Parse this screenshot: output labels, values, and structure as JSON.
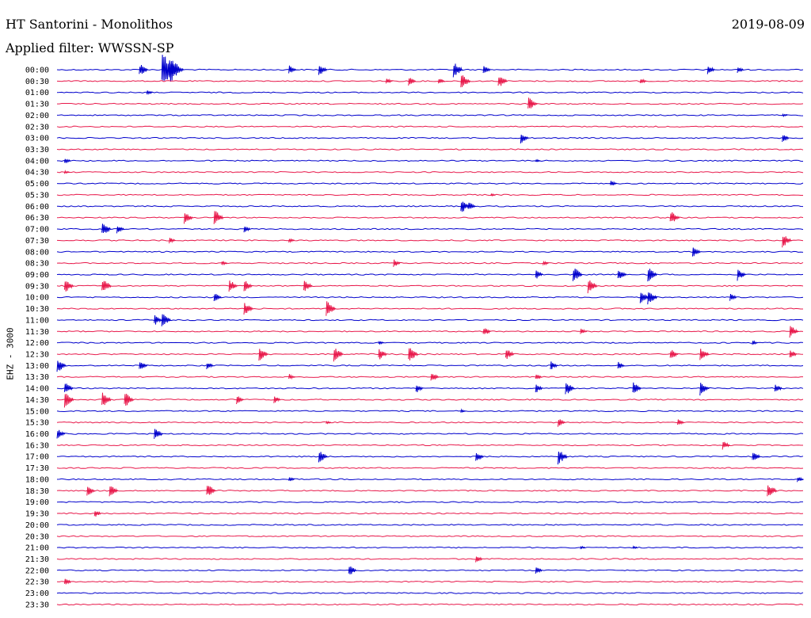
{
  "header": {
    "station": "HT Santorini - Monolithos",
    "date": "2019-08-09",
    "filter_label": "Applied filter: WWSSN-SP"
  },
  "channel": "EHZ - 3000",
  "colors": {
    "trace_a": "#0000cc",
    "trace_b": "#e8194b",
    "background": "#ffffff",
    "text": "#000000"
  },
  "rows": [
    {
      "label": "00:00",
      "events": [
        [
          0.11,
          8
        ],
        [
          0.14,
          22
        ],
        [
          0.15,
          18
        ],
        [
          0.31,
          6
        ],
        [
          0.35,
          8
        ],
        [
          0.53,
          10
        ],
        [
          0.57,
          6
        ],
        [
          0.87,
          6
        ],
        [
          0.91,
          4
        ]
      ]
    },
    {
      "label": "00:30",
      "events": [
        [
          0.44,
          4
        ],
        [
          0.47,
          6
        ],
        [
          0.51,
          5
        ],
        [
          0.54,
          10
        ],
        [
          0.59,
          9
        ],
        [
          0.78,
          4
        ]
      ]
    },
    {
      "label": "01:00",
      "events": [
        [
          0.12,
          3
        ]
      ]
    },
    {
      "label": "01:30",
      "events": [
        [
          0.63,
          9
        ]
      ]
    },
    {
      "label": "02:00",
      "events": [
        [
          0.97,
          2
        ]
      ]
    },
    {
      "label": "02:30",
      "events": []
    },
    {
      "label": "03:00",
      "events": [
        [
          0.62,
          7
        ],
        [
          0.97,
          5
        ]
      ]
    },
    {
      "label": "03:30",
      "events": []
    },
    {
      "label": "04:00",
      "events": [
        [
          0.01,
          4
        ],
        [
          0.64,
          2
        ]
      ]
    },
    {
      "label": "04:30",
      "events": [
        [
          0.01,
          2
        ]
      ]
    },
    {
      "label": "05:00",
      "events": [
        [
          0.74,
          4
        ]
      ]
    },
    {
      "label": "05:30",
      "events": [
        [
          0.58,
          2
        ]
      ]
    },
    {
      "label": "06:00",
      "events": [
        [
          0.54,
          9
        ],
        [
          0.55,
          6
        ]
      ]
    },
    {
      "label": "06:30",
      "events": [
        [
          0.17,
          8
        ],
        [
          0.21,
          10
        ],
        [
          0.82,
          9
        ]
      ]
    },
    {
      "label": "07:00",
      "events": [
        [
          0.06,
          9
        ],
        [
          0.08,
          6
        ],
        [
          0.25,
          5
        ]
      ]
    },
    {
      "label": "07:30",
      "events": [
        [
          0.15,
          4
        ],
        [
          0.31,
          3
        ],
        [
          0.97,
          9
        ]
      ]
    },
    {
      "label": "08:00",
      "events": [
        [
          0.85,
          7
        ]
      ]
    },
    {
      "label": "08:30",
      "events": [
        [
          0.22,
          3
        ],
        [
          0.45,
          5
        ],
        [
          0.65,
          3
        ]
      ]
    },
    {
      "label": "09:00",
      "events": [
        [
          0.64,
          6
        ],
        [
          0.69,
          10
        ],
        [
          0.75,
          8
        ],
        [
          0.79,
          10
        ],
        [
          0.91,
          8
        ]
      ]
    },
    {
      "label": "09:30",
      "events": [
        [
          0.01,
          9
        ],
        [
          0.06,
          10
        ],
        [
          0.23,
          8
        ],
        [
          0.25,
          8
        ],
        [
          0.33,
          8
        ],
        [
          0.71,
          10
        ]
      ]
    },
    {
      "label": "10:00",
      "events": [
        [
          0.21,
          6
        ],
        [
          0.78,
          8
        ],
        [
          0.79,
          10
        ],
        [
          0.9,
          5
        ]
      ]
    },
    {
      "label": "10:30",
      "events": [
        [
          0.25,
          9
        ],
        [
          0.36,
          10
        ]
      ]
    },
    {
      "label": "11:00",
      "events": [
        [
          0.13,
          7
        ],
        [
          0.14,
          9
        ]
      ]
    },
    {
      "label": "11:30",
      "events": [
        [
          0.57,
          6
        ],
        [
          0.7,
          4
        ],
        [
          0.98,
          8
        ]
      ]
    },
    {
      "label": "12:00",
      "events": [
        [
          0.43,
          2
        ],
        [
          0.93,
          3
        ]
      ]
    },
    {
      "label": "12:30",
      "events": [
        [
          0.27,
          9
        ],
        [
          0.37,
          10
        ],
        [
          0.43,
          8
        ],
        [
          0.47,
          10
        ],
        [
          0.6,
          8
        ],
        [
          0.82,
          7
        ],
        [
          0.86,
          9
        ],
        [
          0.98,
          6
        ]
      ]
    },
    {
      "label": "13:00",
      "events": [
        [
          0.0,
          9
        ],
        [
          0.11,
          7
        ],
        [
          0.2,
          5
        ],
        [
          0.66,
          6
        ],
        [
          0.75,
          5
        ]
      ]
    },
    {
      "label": "13:30",
      "events": [
        [
          0.31,
          4
        ],
        [
          0.5,
          7
        ],
        [
          0.64,
          4
        ]
      ]
    },
    {
      "label": "14:00",
      "events": [
        [
          0.01,
          8
        ],
        [
          0.48,
          6
        ],
        [
          0.64,
          6
        ],
        [
          0.68,
          9
        ],
        [
          0.77,
          8
        ],
        [
          0.86,
          9
        ],
        [
          0.96,
          6
        ]
      ]
    },
    {
      "label": "14:30",
      "events": [
        [
          0.01,
          10
        ],
        [
          0.06,
          10
        ],
        [
          0.09,
          10
        ],
        [
          0.24,
          6
        ],
        [
          0.29,
          5
        ]
      ]
    },
    {
      "label": "15:00",
      "events": [
        [
          0.54,
          2
        ]
      ]
    },
    {
      "label": "15:30",
      "events": [
        [
          0.36,
          2
        ],
        [
          0.67,
          6
        ],
        [
          0.83,
          5
        ]
      ]
    },
    {
      "label": "16:00",
      "events": [
        [
          0.0,
          7
        ],
        [
          0.13,
          8
        ]
      ]
    },
    {
      "label": "16:30",
      "events": [
        [
          0.89,
          6
        ]
      ]
    },
    {
      "label": "17:00",
      "events": [
        [
          0.35,
          8
        ],
        [
          0.56,
          7
        ],
        [
          0.67,
          10
        ],
        [
          0.93,
          7
        ]
      ]
    },
    {
      "label": "17:30",
      "events": []
    },
    {
      "label": "18:00",
      "events": [
        [
          0.31,
          3
        ],
        [
          0.99,
          4
        ]
      ]
    },
    {
      "label": "18:30",
      "events": [
        [
          0.04,
          7
        ],
        [
          0.07,
          8
        ],
        [
          0.2,
          9
        ],
        [
          0.95,
          10
        ]
      ]
    },
    {
      "label": "19:00",
      "events": []
    },
    {
      "label": "19:30",
      "events": [
        [
          0.05,
          5
        ]
      ]
    },
    {
      "label": "20:00",
      "events": []
    },
    {
      "label": "20:30",
      "events": []
    },
    {
      "label": "21:00",
      "events": [
        [
          0.7,
          2
        ],
        [
          0.77,
          2
        ]
      ]
    },
    {
      "label": "21:30",
      "events": [
        [
          0.56,
          5
        ]
      ]
    },
    {
      "label": "22:00",
      "events": [
        [
          0.39,
          7
        ],
        [
          0.64,
          5
        ]
      ]
    },
    {
      "label": "22:30",
      "events": [
        [
          0.01,
          5
        ]
      ]
    },
    {
      "label": "23:00",
      "events": []
    },
    {
      "label": "23:30",
      "events": []
    }
  ]
}
